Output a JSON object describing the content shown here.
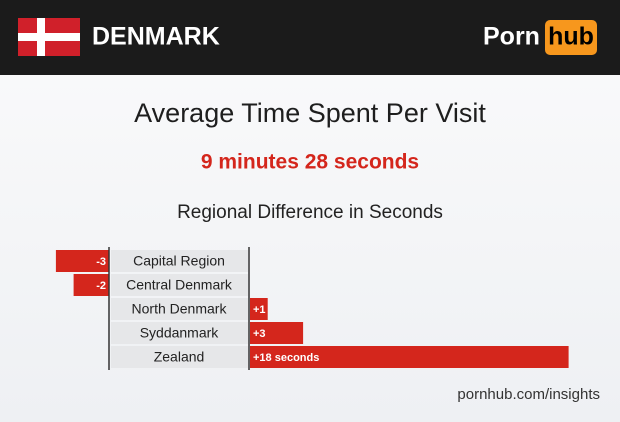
{
  "header": {
    "country": "DENMARK",
    "logo": [
      "Porn",
      "hub"
    ]
  },
  "chart_data": {
    "type": "bar",
    "title": "Average Time Spent Per Visit",
    "subtitle": "9 minutes 28 seconds",
    "axis_title": "Regional Difference in Seconds",
    "categories": [
      "Capital Region",
      "Central Denmark",
      "North Denmark",
      "Syddanmark",
      "Zealand"
    ],
    "values": [
      -3,
      -2,
      1,
      3,
      18
    ],
    "value_labels": [
      "-3",
      "-2",
      "+1",
      "+3",
      "+18 seconds"
    ],
    "color": "#d4261c"
  },
  "footer": "pornhub.com/insights"
}
